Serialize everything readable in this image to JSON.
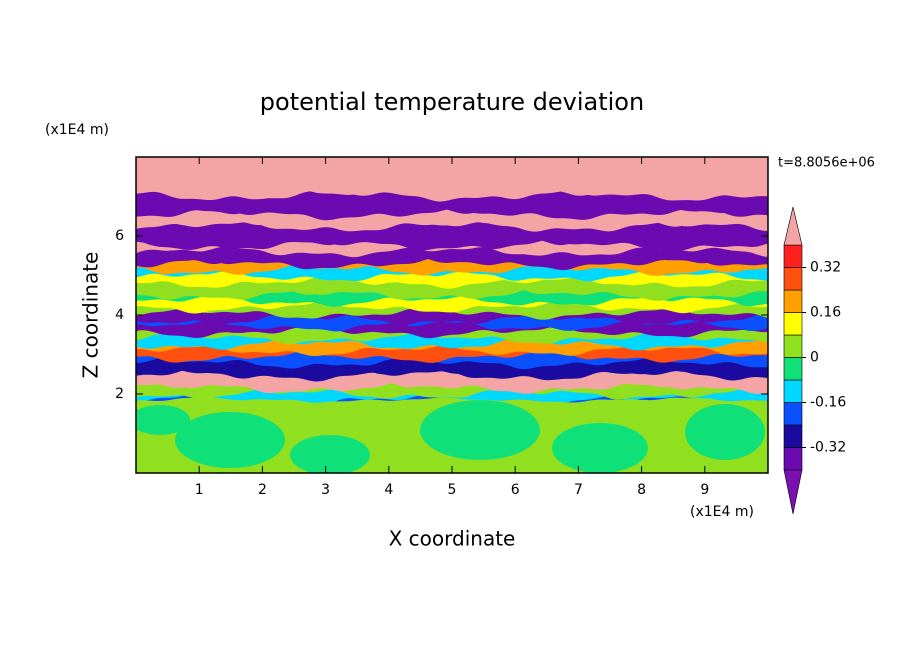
{
  "chart_data": {
    "type": "contour",
    "title": "potential temperature deviation",
    "xlabel": "X coordinate",
    "ylabel": "Z coordinate",
    "x_unit_label": "(x1E4 m)",
    "y_unit_label": "(x1E4 m)",
    "annotation": "t=8.8056e+06",
    "xlim": [
      0,
      10
    ],
    "xticks": [
      1,
      2,
      3,
      4,
      5,
      6,
      7,
      8,
      9
    ],
    "ylim": [
      0,
      8
    ],
    "yticks": [
      2,
      4,
      6
    ],
    "levels": [
      -0.4,
      -0.32,
      -0.24,
      -0.16,
      -0.08,
      0,
      0.08,
      0.16,
      0.24,
      0.32,
      0.4
    ],
    "colors": [
      "#6a0ab0",
      "#1a0aa0",
      "#0a50ff",
      "#00d8ff",
      "#10e078",
      "#90e020",
      "#ffff00",
      "#ffa000",
      "#ff5010",
      "#ff2020"
    ],
    "extend_low_color": "#7a10b0",
    "extend_high_color": "#f4a4a4",
    "colorbar_ticks": [
      -0.32,
      -0.16,
      0,
      0.16,
      0.32
    ]
  }
}
